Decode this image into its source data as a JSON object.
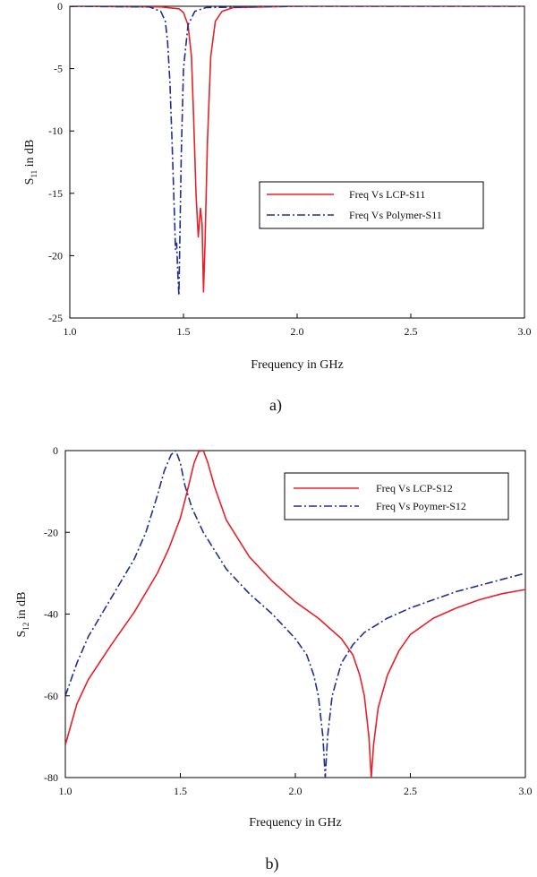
{
  "chart_data": [
    {
      "type": "line",
      "panel_label": "a)",
      "title": "",
      "xlabel": "Frequency in GHz",
      "ylabel": {
        "main": "S",
        "sub": "11",
        "rest": " in dB"
      },
      "xlim": [
        1.0,
        3.0
      ],
      "ylim": [
        -25,
        0
      ],
      "xticks": [
        "1.0",
        "1.5",
        "2.0",
        "2.5",
        "3.0"
      ],
      "yticks": [
        "0",
        "-5",
        "-10",
        "-15",
        "-20",
        "-25"
      ],
      "legend": {
        "placement": "center-right",
        "entries": [
          "Freq Vs LCP-S11",
          "Freq Vs Polymer-S11"
        ]
      },
      "series": [
        {
          "name": "Freq Vs LCP-S11",
          "color": "#e8202a",
          "style": "solid",
          "x": [
            1.0,
            1.4,
            1.48,
            1.5,
            1.52,
            1.535,
            1.545,
            1.555,
            1.565,
            1.575,
            1.582,
            1.588,
            1.595,
            1.605,
            1.62,
            1.64,
            1.67,
            1.72,
            2.0,
            3.0
          ],
          "y": [
            0,
            -0.05,
            -0.2,
            -0.5,
            -1.5,
            -4,
            -9,
            -15,
            -18.5,
            -16.2,
            -17.5,
            -22.9,
            -19,
            -11,
            -4,
            -1.2,
            -0.4,
            -0.1,
            0,
            0
          ]
        },
        {
          "name": "Freq Vs Polymer-S11",
          "color": "#1f2f8f",
          "style": "dashdot",
          "x": [
            1.0,
            1.35,
            1.4,
            1.42,
            1.43,
            1.44,
            1.45,
            1.46,
            1.465,
            1.47,
            1.475,
            1.48,
            1.49,
            1.5,
            1.52,
            1.55,
            1.6,
            2.0,
            3.0
          ],
          "y": [
            0,
            -0.05,
            -0.4,
            -1.2,
            -2.8,
            -6,
            -11,
            -16.5,
            -19.5,
            -19.0,
            -21.5,
            -23.2,
            -12,
            -5,
            -1.5,
            -0.4,
            -0.1,
            0,
            0
          ]
        }
      ]
    },
    {
      "type": "line",
      "panel_label": "b)",
      "title": "",
      "xlabel": "Frequency in GHz",
      "ylabel": {
        "main": "S",
        "sub": "12",
        "rest": " in dB"
      },
      "xlim": [
        1.0,
        3.0
      ],
      "ylim": [
        -80,
        0
      ],
      "xticks": [
        "1.0",
        "1.5",
        "2.0",
        "2.5",
        "3.0"
      ],
      "yticks": [
        "0",
        "-20",
        "-40",
        "-60",
        "-80"
      ],
      "legend": {
        "placement": "top-right",
        "entries": [
          "Freq Vs LCP-S12",
          "Freq Vs Poymer-S12"
        ]
      },
      "series": [
        {
          "name": "Freq Vs LCP-S12",
          "color": "#e8202a",
          "style": "solid",
          "x": [
            1.0,
            1.05,
            1.1,
            1.2,
            1.3,
            1.4,
            1.45,
            1.5,
            1.53,
            1.56,
            1.58,
            1.6,
            1.62,
            1.65,
            1.7,
            1.8,
            1.9,
            2.0,
            2.1,
            2.2,
            2.25,
            2.28,
            2.3,
            2.32,
            2.33,
            2.34,
            2.36,
            2.4,
            2.45,
            2.5,
            2.6,
            2.7,
            2.8,
            2.9,
            3.0
          ],
          "y": [
            -72,
            -62,
            -56,
            -47.5,
            -39.5,
            -30,
            -24,
            -16.5,
            -10,
            -3,
            -0.2,
            0,
            -3,
            -9,
            -17,
            -26,
            -32,
            -37,
            -41,
            -46,
            -50,
            -55,
            -60,
            -70,
            -80,
            -72,
            -63,
            -55,
            -49,
            -45,
            -41,
            -38.5,
            -36.5,
            -35,
            -34
          ]
        },
        {
          "name": "Freq Vs Poymer-S12",
          "color": "#1f2f8f",
          "style": "dashdot",
          "x": [
            1.0,
            1.05,
            1.1,
            1.2,
            1.3,
            1.35,
            1.4,
            1.43,
            1.46,
            1.48,
            1.5,
            1.52,
            1.55,
            1.6,
            1.7,
            1.8,
            1.9,
            2.0,
            2.05,
            2.08,
            2.1,
            2.12,
            2.13,
            2.14,
            2.16,
            2.2,
            2.25,
            2.3,
            2.4,
            2.5,
            2.6,
            2.7,
            2.8,
            2.9,
            3.0
          ],
          "y": [
            -60,
            -52,
            -45.5,
            -36,
            -26.5,
            -20,
            -11,
            -5,
            -1,
            0,
            -3,
            -8.5,
            -14,
            -20,
            -29,
            -35,
            -40,
            -46,
            -50,
            -55,
            -60,
            -70,
            -80,
            -70,
            -60,
            -52,
            -47.5,
            -44.5,
            -41,
            -38.5,
            -36.5,
            -34.5,
            -33,
            -31.5,
            -30
          ]
        }
      ]
    }
  ]
}
